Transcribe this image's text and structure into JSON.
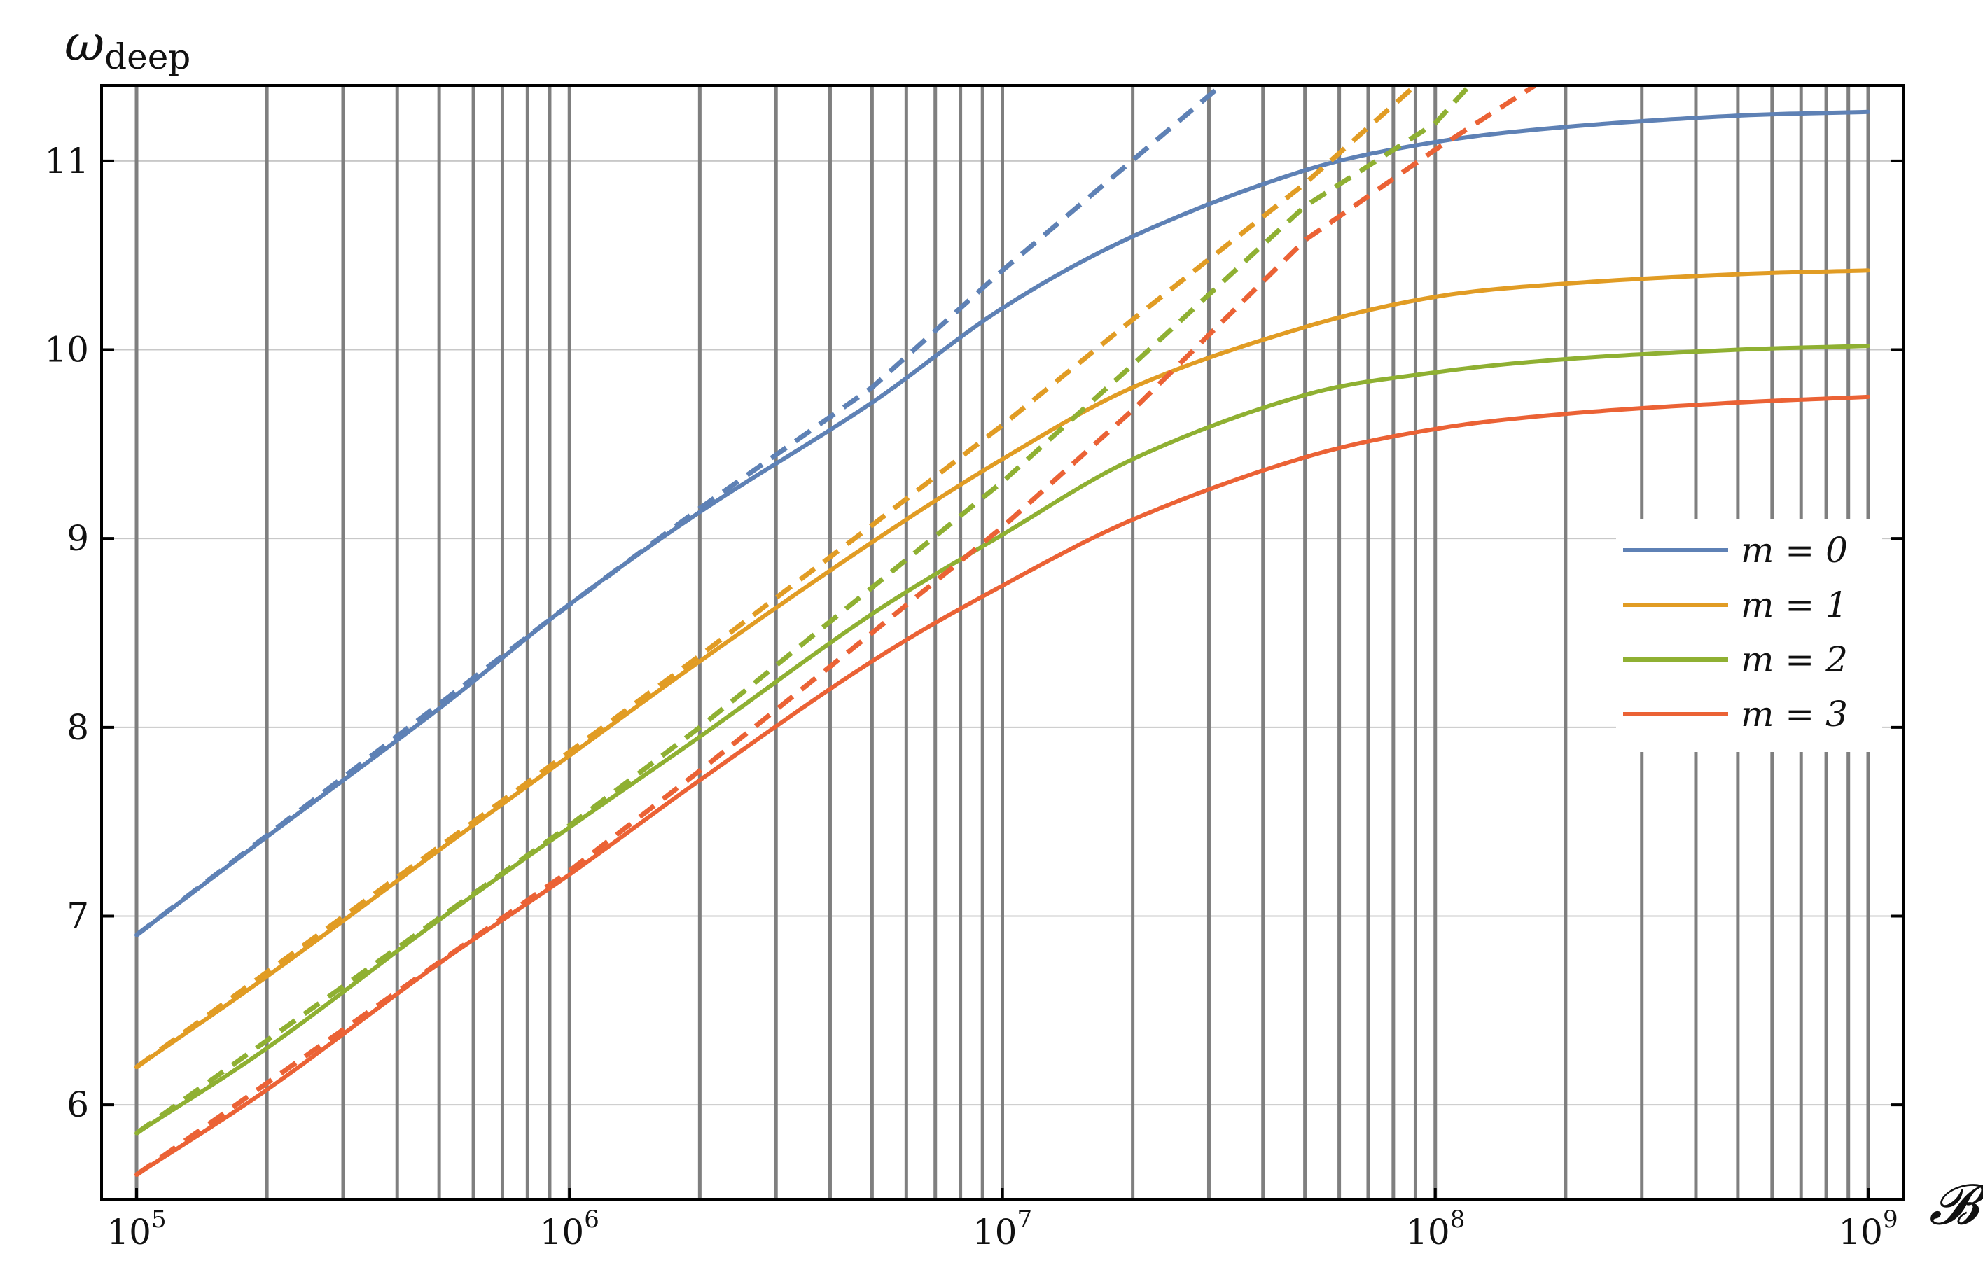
{
  "chart_data": {
    "type": "line",
    "xlabel": "𝓑",
    "ylabel": "ω",
    "ylabel_sub": "deep",
    "x_scale": "log",
    "xlim": [
      100000,
      1000000000
    ],
    "ylim": [
      5.5,
      11.4
    ],
    "x_ticks": [
      {
        "value": 100000,
        "label": "10",
        "exp": "5"
      },
      {
        "value": 1000000,
        "label": "10",
        "exp": "6"
      },
      {
        "value": 10000000,
        "label": "10",
        "exp": "7"
      },
      {
        "value": 100000000,
        "label": "10",
        "exp": "8"
      },
      {
        "value": 1000000000,
        "label": "10",
        "exp": "9"
      }
    ],
    "y_ticks": [
      6,
      7,
      8,
      9,
      10,
      11
    ],
    "vertical_grid": [
      100000,
      200000,
      300000,
      400000,
      500000,
      600000,
      700000,
      800000,
      900000,
      1000000,
      2000000,
      3000000,
      4000000,
      5000000,
      6000000,
      7000000,
      8000000,
      9000000,
      10000000,
      20000000,
      30000000,
      40000000,
      50000000,
      60000000,
      70000000,
      80000000,
      90000000,
      100000000,
      200000000,
      300000000,
      400000000,
      500000000,
      600000000,
      700000000,
      800000000,
      900000000,
      1000000000
    ],
    "legend_position": "right",
    "series": [
      {
        "name": "m = 0",
        "color": "#5e81b5",
        "x": [
          100000,
          200000,
          500000,
          1000000,
          2000000,
          5000000,
          10000000,
          20000000,
          50000000,
          100000000,
          200000000,
          500000000,
          1000000000
        ],
        "y": [
          6.9,
          7.42,
          8.1,
          8.65,
          9.14,
          9.72,
          10.22,
          10.6,
          10.95,
          11.1,
          11.18,
          11.24,
          11.26
        ],
        "asymptote_x": [
          100000,
          1000000,
          2000000,
          5000000,
          10000000,
          32000000
        ],
        "asymptote_y": [
          6.9,
          8.65,
          9.16,
          9.8,
          10.42,
          11.4
        ]
      },
      {
        "name": "m = 1",
        "color": "#e19c24",
        "x": [
          100000,
          200000,
          500000,
          1000000,
          2000000,
          5000000,
          10000000,
          20000000,
          50000000,
          100000000,
          200000000,
          500000000,
          1000000000
        ],
        "y": [
          6.2,
          6.68,
          7.35,
          7.85,
          8.35,
          8.98,
          9.42,
          9.8,
          10.12,
          10.28,
          10.35,
          10.4,
          10.42
        ],
        "asymptote_x": [
          100000,
          1000000,
          2000000,
          5000000,
          10000000,
          20000000,
          50000000,
          90000000
        ],
        "asymptote_y": [
          6.2,
          7.87,
          8.38,
          9.07,
          9.6,
          10.16,
          10.88,
          11.4
        ]
      },
      {
        "name": "m = 2",
        "color": "#8fb032",
        "x": [
          100000,
          200000,
          500000,
          1000000,
          2000000,
          5000000,
          10000000,
          20000000,
          50000000,
          100000000,
          200000000,
          500000000,
          1000000000
        ],
        "y": [
          5.85,
          6.3,
          6.98,
          7.47,
          7.95,
          8.6,
          9.02,
          9.42,
          9.76,
          9.88,
          9.95,
          10.0,
          10.02
        ],
        "asymptote_x": [
          100000,
          1000000,
          2000000,
          5000000,
          10000000,
          20000000,
          50000000,
          100000000,
          120000000
        ],
        "asymptote_y": [
          5.85,
          7.48,
          8.0,
          8.74,
          9.3,
          9.92,
          10.76,
          11.2,
          11.4
        ]
      },
      {
        "name": "m = 3",
        "color": "#eb6235",
        "x": [
          100000,
          200000,
          500000,
          1000000,
          2000000,
          5000000,
          10000000,
          20000000,
          50000000,
          100000000,
          200000000,
          500000000,
          1000000000
        ],
        "y": [
          5.63,
          6.08,
          6.75,
          7.22,
          7.72,
          8.35,
          8.75,
          9.1,
          9.43,
          9.58,
          9.66,
          9.72,
          9.75
        ],
        "asymptote_x": [
          100000,
          1000000,
          2000000,
          5000000,
          10000000,
          20000000,
          50000000,
          100000000,
          170000000
        ],
        "asymptote_y": [
          5.63,
          7.24,
          7.77,
          8.5,
          9.06,
          9.68,
          10.58,
          11.06,
          11.4
        ]
      }
    ]
  }
}
